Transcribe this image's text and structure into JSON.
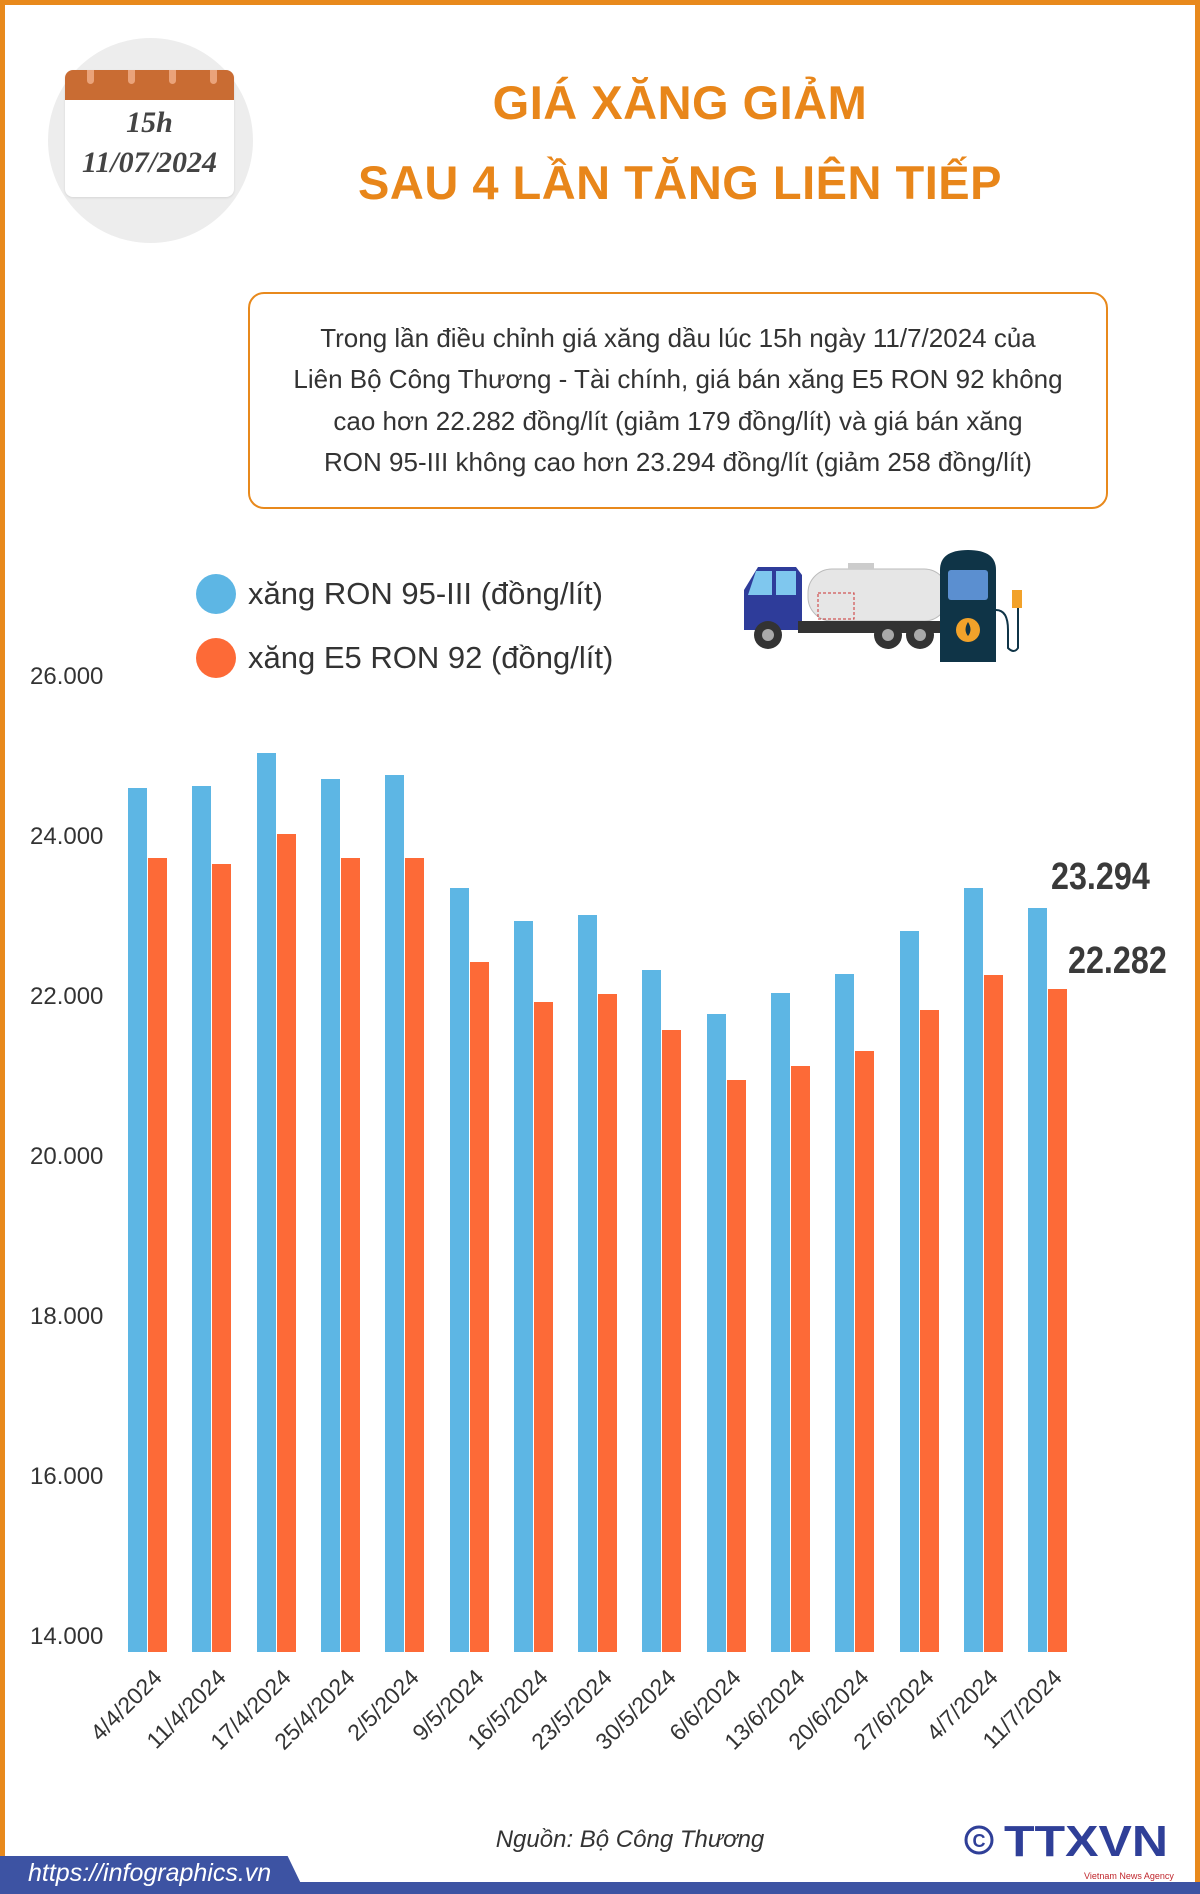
{
  "calendar": {
    "time": "15h",
    "date": "11/07/2024",
    "icon": "calendar-icon"
  },
  "header": {
    "title_line1": "GIÁ XĂNG GIẢM",
    "title_line2": "SAU 4 LẦN TĂNG LIÊN TIẾP"
  },
  "summary": {
    "lines": [
      "Trong lần điều chỉnh giá xăng dầu lúc 15h ngày 11/7/2024 của",
      "Liên Bộ Công Thương - Tài chính, giá bán xăng E5 RON 92 không",
      "cao hơn 22.282 đồng/lít (giảm 179 đồng/lít) và giá bán xăng",
      "RON 95-III không cao hơn 23.294 đồng/lít (giảm 258 đồng/lít)"
    ]
  },
  "icons": [
    "fuel-tanker-truck-icon",
    "fuel-pump-icon"
  ],
  "chart_data": {
    "type": "bar",
    "categories": [
      "4/4/2024",
      "11/4/2024",
      "17/4/2024",
      "25/4/2024",
      "2/5/2024",
      "9/5/2024",
      "16/5/2024",
      "23/5/2024",
      "30/5/2024",
      "6/6/2024",
      "13/6/2024",
      "20/6/2024",
      "27/6/2024",
      "4/7/2024",
      "11/7/2024"
    ],
    "series": [
      {
        "name": "xăng RON 95-III (đồng/lít)",
        "color": "#5db6e4",
        "values": [
          24800,
          24830,
          25240,
          24910,
          24960,
          23550,
          23140,
          23210,
          22520,
          21980,
          22240,
          22470,
          23010,
          23552,
          23294
        ]
      },
      {
        "name": "xăng E5 RON 92 (đồng/lít)",
        "color": "#fd6a37",
        "values": [
          23920,
          23850,
          24230,
          23920,
          23920,
          22630,
          22120,
          22230,
          21770,
          21150,
          21320,
          21510,
          22020,
          22461,
          22282
        ]
      }
    ],
    "yticks": [
      "14.000",
      "16.000",
      "18.000",
      "20.000",
      "22.000",
      "24.000",
      "26.000"
    ],
    "ytick_values": [
      14000,
      16000,
      18000,
      20000,
      22000,
      24000,
      26000
    ],
    "ylim": [
      14000,
      26000
    ],
    "grid": false,
    "legend_placement": "top-left",
    "annotations": [
      "23.294",
      "22.282"
    ]
  },
  "footer": {
    "source": "Nguồn: Bộ Công Thương",
    "url": "https://infographics.vn",
    "logo_text": "TTXVN",
    "logo_sub": "Vietnam News Agency",
    "band_color": "#3d53a3"
  }
}
